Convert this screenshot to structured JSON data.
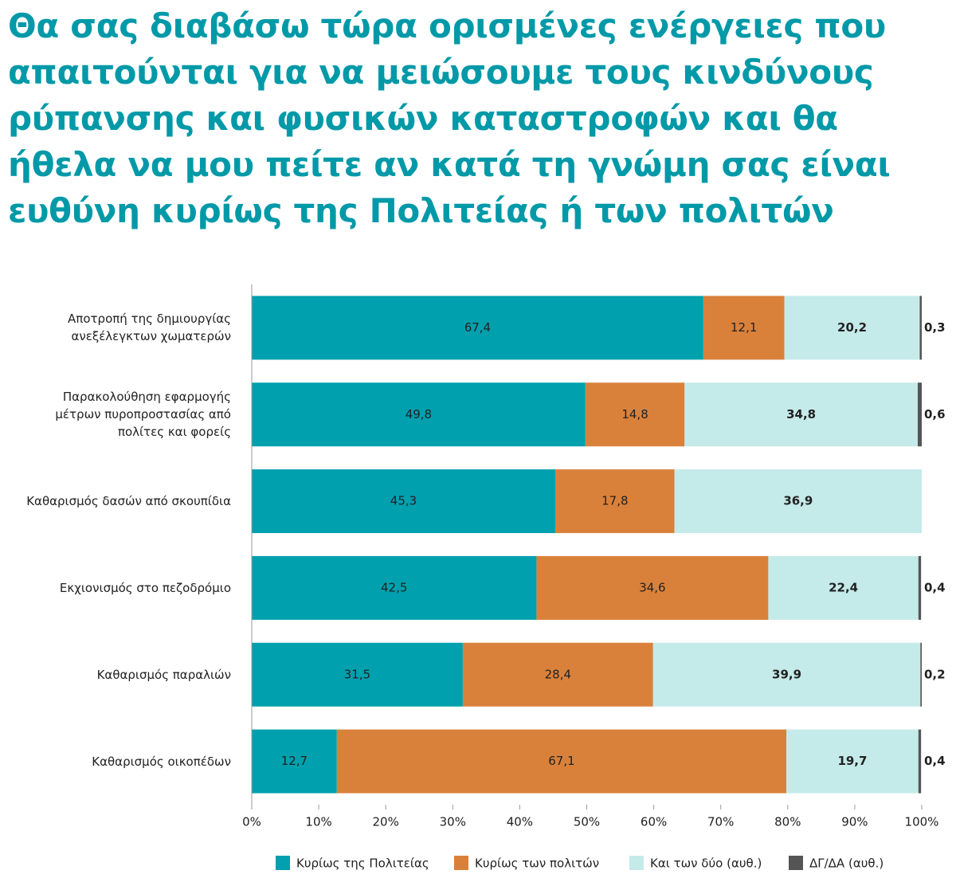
{
  "chart_data": {
    "type": "stacked-barh",
    "title": "Θα σας διαβάσω τώρα ορισμένες ενέργειες που\nαπαιτούνται για να μειώσουμε τους κινδύνους\nρύπανσης και φυσικών καταστροφών και θα\nήθελα να μου πείτε αν κατά τη γνώμη σας είναι\nευθύνη κυρίως της Πολιτείας ή των πολιτών",
    "categories": [
      "Αποτροπή της δημιουργίας\nανεξέλεγκτων χωματερών",
      "Παρακολούθηση εφαρμογής\nμέτρων πυροπροστασίας από\nπολίτες και φορείς",
      "Καθαρισμός δασών από σκουπίδια",
      "Εκχιονισμός στο πεζοδρόμιο",
      "Καθαρισμός παραλιών",
      "Καθαρισμός οικοπέδων"
    ],
    "series": [
      {
        "name": "Κυρίως της Πολιτείας",
        "color": "#00a0ae",
        "label_color": "#ffffff",
        "values": [
          67.4,
          49.8,
          45.3,
          42.5,
          31.5,
          12.7
        ],
        "value_labels": [
          "67,4",
          "49,8",
          "45,3",
          "42,5",
          "31,5",
          "12,7"
        ]
      },
      {
        "name": "Κυρίως των πολιτών",
        "color": "#d9813b",
        "label_color": "#ffffff",
        "values": [
          12.1,
          14.8,
          17.8,
          34.6,
          28.4,
          67.1
        ],
        "value_labels": [
          "12,1",
          "14,8",
          "17,8",
          "34,6",
          "28,4",
          "67,1"
        ]
      },
      {
        "name": "Και των δύο (αυθ.)",
        "color": "#c5eaea",
        "label_color": "#111111",
        "values": [
          20.2,
          34.8,
          36.9,
          22.4,
          39.9,
          19.7
        ],
        "value_labels": [
          "20,2",
          "34,8",
          "36,9",
          "22,4",
          "39,9",
          "19,7"
        ]
      },
      {
        "name": "ΔΓ/ΔΑ (αυθ.)",
        "color": "#555555",
        "label_color": "#111111",
        "values": [
          0.3,
          0.6,
          null,
          0.4,
          0.2,
          0.4
        ],
        "value_labels": [
          "0,3",
          "0,6",
          null,
          "0,4",
          "0,2",
          "0,4"
        ]
      }
    ],
    "xlim": [
      0,
      100
    ],
    "xticks": [
      {
        "value": 0,
        "label": "0%"
      },
      {
        "value": 10,
        "label": "10%"
      },
      {
        "value": 20,
        "label": "20%"
      },
      {
        "value": 30,
        "label": "30%"
      },
      {
        "value": 40,
        "label": "40%"
      },
      {
        "value": 50,
        "label": "50%"
      },
      {
        "value": 60,
        "label": "60%"
      },
      {
        "value": 70,
        "label": "70%"
      },
      {
        "value": 80,
        "label": "80%"
      },
      {
        "value": 90,
        "label": "90%"
      },
      {
        "value": 100,
        "label": "100%"
      }
    ],
    "legend": "bottom"
  }
}
